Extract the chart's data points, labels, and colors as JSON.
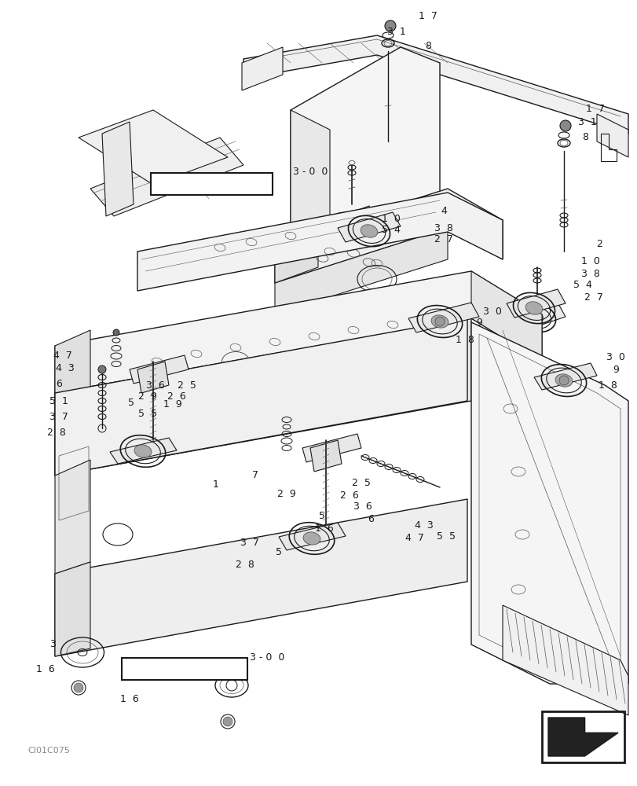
{
  "bg_color": "#ffffff",
  "fig_width": 8.12,
  "fig_height": 10.0,
  "dpi": 100,
  "watermark": "CI01C075",
  "dark": "#1a1a1a",
  "gray": "#555555",
  "lgray": "#888888"
}
